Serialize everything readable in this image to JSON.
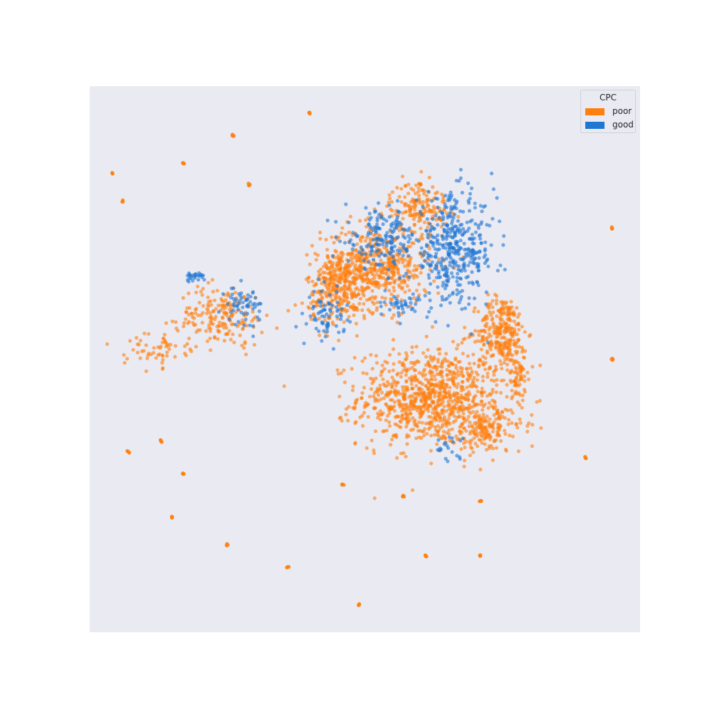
{
  "chart_data": {
    "type": "scatter",
    "title": "",
    "xlabel": "",
    "ylabel": "",
    "grid": false,
    "axes_visible": false,
    "background_color": "#eaeaf2",
    "xlim": [
      0,
      100
    ],
    "ylim": [
      0,
      100
    ],
    "legend": {
      "title": "CPC",
      "placement": "top-right",
      "entries": [
        {
          "label": "poor",
          "color": "#ff7f0e"
        },
        {
          "label": "good",
          "color": "#1f77d4"
        }
      ]
    },
    "series": [
      {
        "name": "poor",
        "color": "#ff7f0e",
        "opacity": 0.6,
        "clusters": [
          {
            "cx": 62,
            "cy": 43,
            "rx": 12,
            "ry": 8,
            "n": 900
          },
          {
            "cx": 75,
            "cy": 55,
            "rx": 4,
            "ry": 6,
            "n": 280
          },
          {
            "cx": 52,
            "cy": 67,
            "rx": 9,
            "ry": 7,
            "n": 520
          },
          {
            "cx": 60,
            "cy": 78,
            "rx": 5,
            "ry": 4,
            "n": 150
          },
          {
            "cx": 45,
            "cy": 63,
            "rx": 5,
            "ry": 6,
            "n": 260
          },
          {
            "cx": 24,
            "cy": 58,
            "rx": 7,
            "ry": 5,
            "n": 180
          },
          {
            "cx": 12,
            "cy": 52,
            "rx": 5,
            "ry": 3,
            "n": 60
          },
          {
            "cx": 72,
            "cy": 37,
            "rx": 6,
            "ry": 4,
            "n": 160
          },
          {
            "cx": 78,
            "cy": 47,
            "rx": 2,
            "ry": 4,
            "n": 60
          }
        ],
        "isolated": [
          {
            "x": 26,
            "y": 91
          },
          {
            "x": 40,
            "y": 95
          },
          {
            "x": 17,
            "y": 86
          },
          {
            "x": 4,
            "y": 84
          },
          {
            "x": 6,
            "y": 79
          },
          {
            "x": 29,
            "y": 82
          },
          {
            "x": 95,
            "y": 74
          },
          {
            "x": 95,
            "y": 50
          },
          {
            "x": 60,
            "y": 82
          },
          {
            "x": 13,
            "y": 35
          },
          {
            "x": 7,
            "y": 33
          },
          {
            "x": 17,
            "y": 29
          },
          {
            "x": 15,
            "y": 21
          },
          {
            "x": 25,
            "y": 16
          },
          {
            "x": 36,
            "y": 12
          },
          {
            "x": 61,
            "y": 14
          },
          {
            "x": 71,
            "y": 14
          },
          {
            "x": 49,
            "y": 5
          },
          {
            "x": 90,
            "y": 32
          },
          {
            "x": 71,
            "y": 24
          },
          {
            "x": 46,
            "y": 27
          },
          {
            "x": 57,
            "y": 25
          }
        ]
      },
      {
        "name": "good",
        "color": "#1f77d4",
        "opacity": 0.6,
        "clusters": [
          {
            "cx": 66,
            "cy": 70,
            "rx": 7,
            "ry": 9,
            "n": 420
          },
          {
            "cx": 53,
            "cy": 72,
            "rx": 6,
            "ry": 5,
            "n": 160
          },
          {
            "cx": 43,
            "cy": 58,
            "rx": 3,
            "ry": 4,
            "n": 70
          },
          {
            "cx": 28,
            "cy": 60,
            "rx": 3,
            "ry": 3,
            "n": 60
          },
          {
            "cx": 19,
            "cy": 65,
            "rx": 2,
            "ry": 1,
            "n": 25
          },
          {
            "cx": 57,
            "cy": 60,
            "rx": 3,
            "ry": 2,
            "n": 40
          },
          {
            "cx": 65,
            "cy": 34,
            "rx": 3,
            "ry": 2,
            "n": 20
          }
        ]
      }
    ]
  }
}
